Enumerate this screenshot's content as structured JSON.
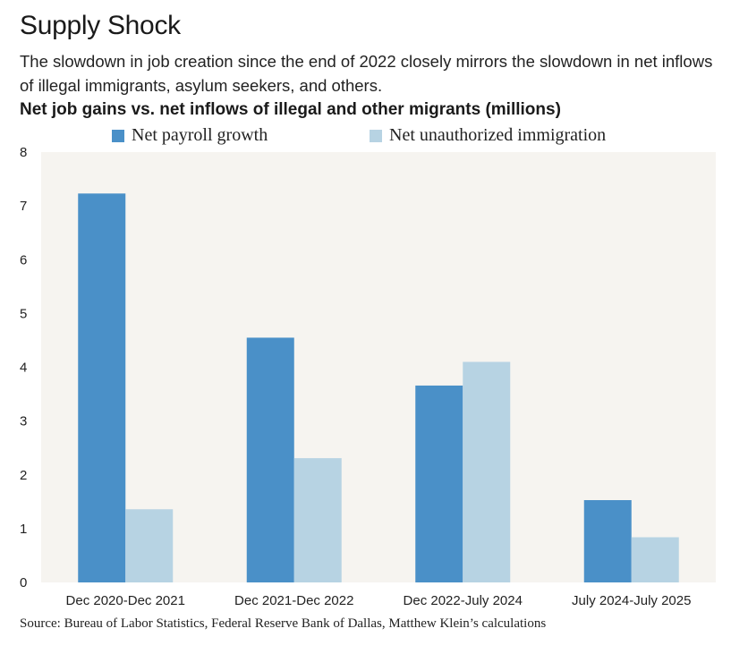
{
  "header": {
    "title": "Supply Shock",
    "subtitle": "The slowdown in job creation since the end of 2022 closely mirrors the slowdown in net inflows of illegal immigrants, asylum seekers, and others."
  },
  "source": "Source: Bureau of Labor Statistics, Federal Reserve Bank of Dallas, Matthew Klein’s calculations",
  "colors": {
    "payroll": "#4a90c8",
    "immigration": "#b7d3e3",
    "plot_bg": "#f6f4f0"
  },
  "chart_data": {
    "type": "bar",
    "title": "Net job gains vs. net inflows of illegal and other migrants (millions)",
    "categories": [
      "Dec 2020-Dec 2021",
      "Dec 2021-Dec 2022",
      "Dec 2022-July 2024",
      "July 2024-July 2025"
    ],
    "series": [
      {
        "name": "Net payroll growth",
        "values": [
          7.23,
          4.55,
          3.66,
          1.53
        ]
      },
      {
        "name": "Net unauthorized immigration",
        "values": [
          1.36,
          2.31,
          4.1,
          0.84
        ]
      }
    ],
    "ylim": [
      0,
      8
    ],
    "yticks": [
      0,
      1,
      2,
      3,
      4,
      5,
      6,
      7,
      8
    ],
    "xlabel": "",
    "ylabel": "",
    "legend": "top"
  }
}
